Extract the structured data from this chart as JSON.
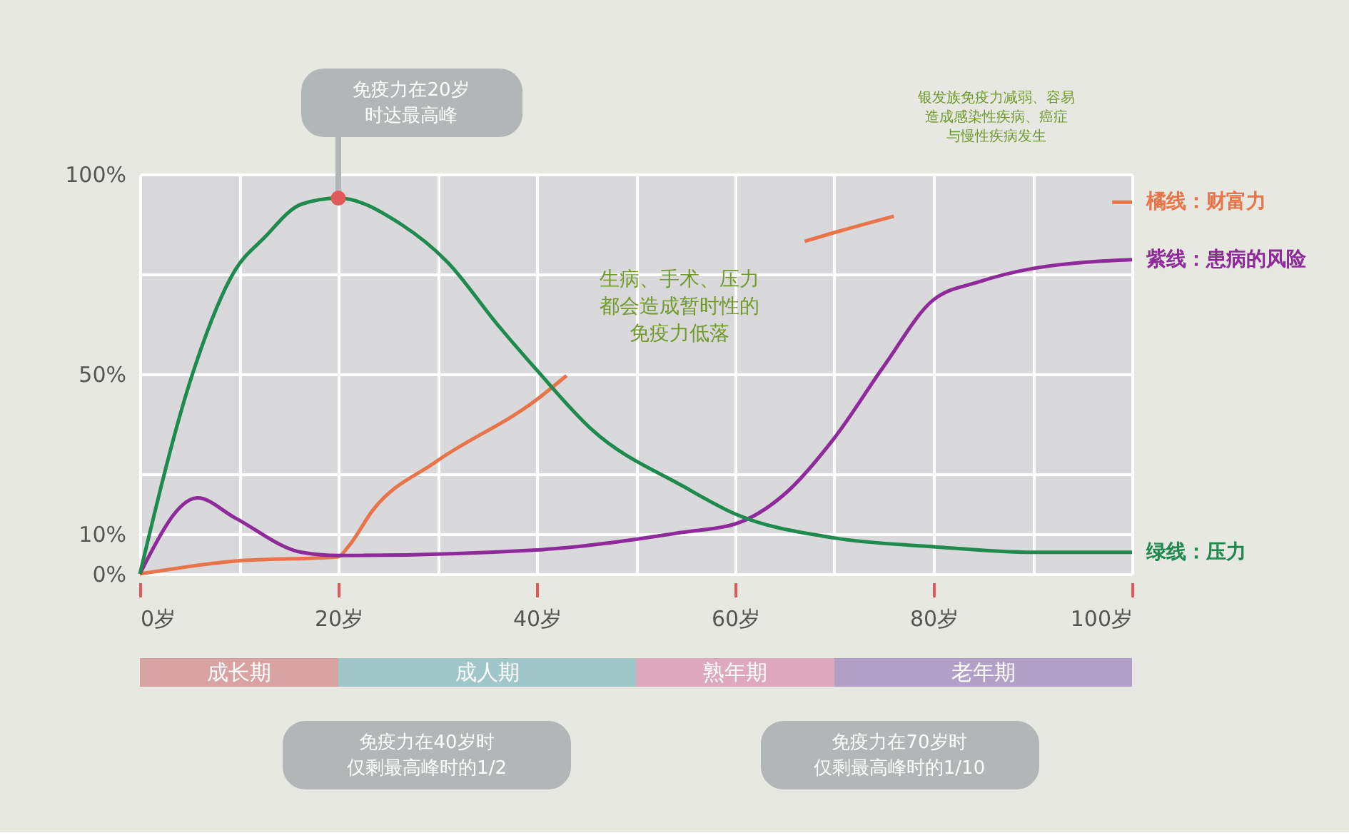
{
  "chart_data": [
    {
      "type": "line",
      "xlim": [
        0,
        100
      ],
      "xticks": [
        {
          "value": 0,
          "label": "0岁"
        },
        {
          "value": 10,
          "label": null
        },
        {
          "value": 20,
          "label": "20岁"
        },
        {
          "value": 30,
          "label": null
        },
        {
          "value": 40,
          "label": "40岁"
        },
        {
          "value": 50,
          "label": null
        },
        {
          "value": 60,
          "label": "60岁"
        },
        {
          "value": 70,
          "label": null
        },
        {
          "value": 80,
          "label": "80岁"
        },
        {
          "value": 90,
          "label": null
        },
        {
          "value": 100,
          "label": "100岁"
        }
      ],
      "ylim": [
        0,
        100
      ],
      "yticks": [
        {
          "value": 0,
          "label": "0%"
        },
        {
          "value": 10,
          "label": "10%"
        },
        {
          "value": 25,
          "label": null
        },
        {
          "value": 50,
          "label": "50%"
        },
        {
          "value": 75,
          "label": null
        },
        {
          "value": 100,
          "label": "100%"
        }
      ],
      "grid": true,
      "line_style": "solid",
      "series": [
        {
          "name": "橘线：财富力",
          "color": "#e8744a",
          "x": [
            0,
            9.6,
            20,
            21,
            23.5,
            29.8,
            40,
            43,
            50,
            58,
            67,
            70,
            76,
            85,
            90,
            98,
            100
          ],
          "values": [
            0,
            3.2,
            4.3,
            6.8,
            16,
            28,
            43.6,
            49.6,
            null,
            null,
            83.2,
            85.4,
            89.5,
            null,
            null,
            93,
            93
          ]
        },
        {
          "name": "紫线：患病的风险",
          "color": "#8e2a9a",
          "x": [
            0,
            5.8,
            9.6,
            16.3,
            20,
            40,
            54.7,
            60,
            65,
            70,
            75,
            80,
            84.5,
            90,
            100
          ],
          "values": [
            0,
            19,
            14,
            5.4,
            4.6,
            6,
            10.4,
            12.5,
            20,
            34,
            52,
            68.6,
            73,
            76.4,
            78.6
          ]
        },
        {
          "name": "绿线：压力",
          "color": "#1e8a4e",
          "x": [
            0,
            5.3,
            9.6,
            12.5,
            16.3,
            20,
            26.3,
            31,
            36,
            40,
            45.6,
            54.7,
            60,
            70,
            80,
            90,
            100
          ],
          "values": [
            0,
            50,
            76,
            84,
            92.5,
            94,
            87.5,
            78,
            62.5,
            51,
            36,
            22,
            15,
            9,
            6.8,
            5.4,
            5.4
          ]
        }
      ],
      "annotations": [
        {
          "text": "免疫力在20岁时达最高峰",
          "x": 20,
          "y": 94
        },
        "生病、手术、压力都会造成暂时性的免疫力低落",
        "银发族免疫力减弱、容易造成感染性疾病、癌症与慢性疾病发生",
        "免疫力在40岁时仅剩最高峰时的1/2",
        "免疫力在70岁时仅剩最高峰时的1/10"
      ]
    },
    {
      "type": "bar",
      "orientation": "horizontal",
      "stacked": true,
      "categories": [
        null
      ],
      "xlim": [
        0,
        100
      ],
      "tick_labels": false,
      "series": [
        {
          "name": "成长期",
          "color": "#d9a3a3",
          "values": [
            20
          ]
        },
        {
          "name": "成人期",
          "color": "#9fc7c9",
          "values": [
            30
          ]
        },
        {
          "name": "熟年期",
          "color": "#dea8bd",
          "values": [
            20
          ]
        },
        {
          "name": "老年期",
          "color": "#b3a0c6",
          "values": [
            30
          ]
        }
      ]
    }
  ]
}
